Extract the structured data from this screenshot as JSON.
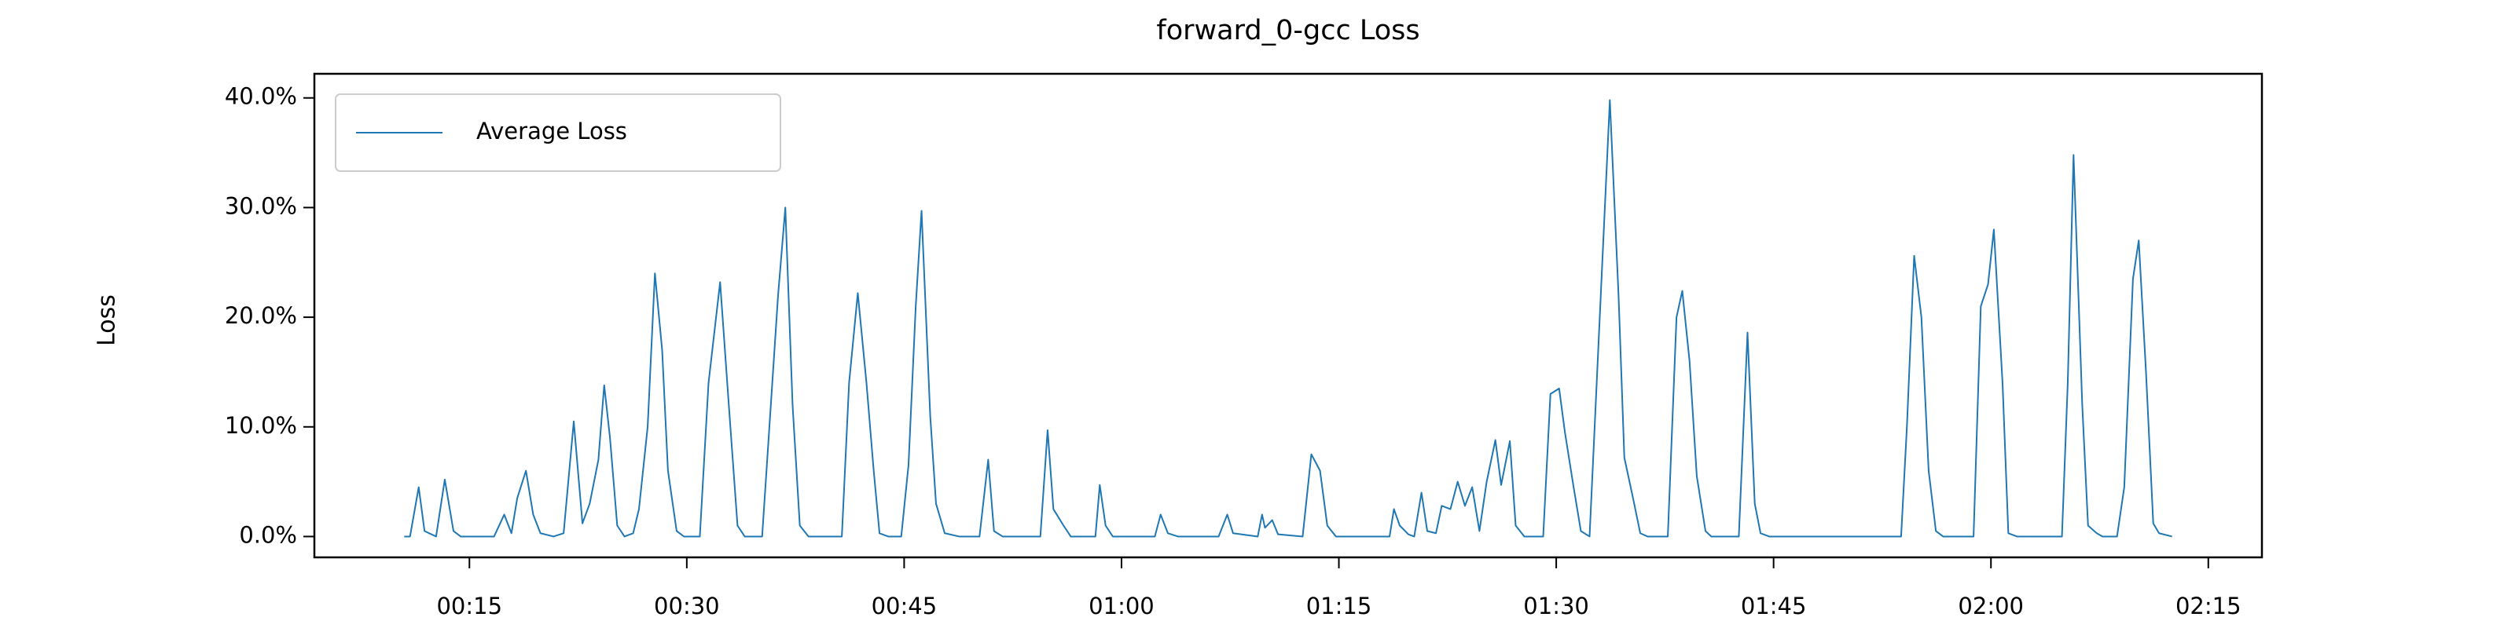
{
  "chart_data": {
    "type": "line",
    "title": "forward_0-gcc Loss",
    "y_label": "Loss",
    "xlim": [
      4.3,
      138.7
    ],
    "ylim": [
      -1.9,
      42.2
    ],
    "xticks": [
      {
        "value": 15,
        "label": "00:15"
      },
      {
        "value": 30,
        "label": "00:30"
      },
      {
        "value": 45,
        "label": "00:45"
      },
      {
        "value": 60,
        "label": "01:00"
      },
      {
        "value": 75,
        "label": "01:15"
      },
      {
        "value": 90,
        "label": "01:30"
      },
      {
        "value": 105,
        "label": "01:45"
      },
      {
        "value": 120,
        "label": "02:00"
      },
      {
        "value": 135,
        "label": "02:15"
      }
    ],
    "yticks": [
      {
        "value": 0,
        "label": "0.0%"
      },
      {
        "value": 10,
        "label": "10.0%"
      },
      {
        "value": 20,
        "label": "20.0%"
      },
      {
        "value": 30,
        "label": "30.0%"
      },
      {
        "value": 40,
        "label": "40.0%"
      }
    ],
    "legend": "upper left",
    "grid": false,
    "x": [
      10.5,
      10.9,
      11.5,
      11.9,
      12.7,
      13.3,
      13.9,
      14.4,
      15.8,
      16.7,
      17.4,
      17.9,
      18.3,
      18.9,
      19.4,
      19.9,
      20.8,
      21.5,
      22.2,
      22.8,
      23.3,
      23.9,
      24.3,
      24.7,
      25.2,
      25.7,
      26.3,
      26.7,
      27.3,
      27.8,
      28.3,
      28.7,
      29.3,
      29.8,
      30.9,
      31.5,
      32.3,
      32.9,
      33.5,
      34.0,
      35.2,
      35.7,
      36.3,
      36.8,
      37.3,
      37.8,
      38.4,
      40.7,
      41.2,
      41.8,
      42.4,
      42.9,
      43.3,
      43.9,
      44.8,
      45.3,
      45.8,
      46.2,
      46.8,
      47.2,
      47.8,
      48.8,
      50.2,
      50.8,
      51.2,
      51.8,
      54.4,
      54.9,
      55.3,
      56.0,
      56.5,
      58.2,
      58.5,
      58.9,
      59.4,
      62.3,
      62.7,
      63.2,
      63.9,
      66.7,
      67.3,
      67.7,
      69.4,
      69.7,
      69.9,
      70.4,
      70.8,
      72.5,
      73.1,
      73.7,
      74.2,
      74.8,
      78.5,
      78.8,
      79.2,
      79.8,
      80.2,
      80.7,
      81.1,
      81.7,
      82.1,
      82.7,
      83.2,
      83.7,
      84.2,
      84.7,
      85.2,
      85.8,
      86.2,
      86.8,
      87.2,
      87.8,
      89.1,
      89.6,
      90.2,
      90.6,
      91.2,
      91.7,
      92.3,
      93.7,
      94.3,
      94.7,
      95.3,
      95.8,
      96.3,
      97.7,
      98.3,
      98.7,
      99.2,
      99.7,
      100.3,
      100.7,
      102.6,
      103.2,
      103.7,
      104.1,
      104.7,
      113.8,
      114.2,
      114.7,
      115.2,
      115.7,
      116.2,
      116.7,
      118.8,
      119.3,
      119.8,
      120.2,
      120.8,
      121.2,
      121.8,
      124.9,
      125.3,
      125.7,
      126.3,
      126.7,
      127.3,
      127.7,
      128.7,
      129.2,
      129.8,
      130.2,
      130.7,
      131.2,
      131.6,
      132.5
    ],
    "series": [
      {
        "name": "Average Loss",
        "color": "#1f77b4",
        "values": [
          0,
          0,
          4.5,
          0.5,
          0,
          5.2,
          0.5,
          0,
          0,
          0,
          2,
          0.3,
          3.5,
          6,
          2,
          0.3,
          0,
          0.3,
          10.5,
          1.2,
          3,
          7,
          13.8,
          9,
          1,
          0,
          0.3,
          2.5,
          10,
          24,
          17,
          6,
          0.5,
          0,
          0,
          14,
          23.2,
          12,
          1,
          0,
          0,
          10,
          22,
          30,
          12,
          1,
          0,
          0,
          14,
          22.2,
          14,
          6,
          0.3,
          0,
          0,
          6.5,
          21,
          29.7,
          11,
          3,
          0.3,
          0,
          0,
          7,
          0.5,
          0,
          0,
          9.7,
          2.5,
          1,
          0,
          0,
          4.7,
          1,
          0,
          0,
          2,
          0.3,
          0,
          0,
          2,
          0.3,
          0,
          2,
          0.8,
          1.5,
          0.2,
          0,
          7.5,
          6,
          1,
          0,
          0,
          2.5,
          1,
          0.2,
          0,
          4,
          0.5,
          0.3,
          2.8,
          2.5,
          5,
          2.8,
          4.5,
          0.5,
          5,
          8.8,
          4.7,
          8.7,
          1,
          0,
          0,
          13,
          13.5,
          9.5,
          4.5,
          0.5,
          0,
          39.8,
          22,
          7.2,
          3.5,
          0.3,
          0,
          0,
          20,
          22.4,
          16,
          5.5,
          0.5,
          0,
          0,
          18.6,
          3,
          0.3,
          0,
          0,
          10,
          25.6,
          20,
          6,
          0.5,
          0,
          0,
          21,
          23,
          28,
          14,
          0.3,
          0,
          0,
          14,
          34.8,
          12,
          1,
          0.3,
          0,
          0,
          4.5,
          23.5,
          27,
          15,
          1.2,
          0.3,
          0
        ]
      }
    ]
  }
}
